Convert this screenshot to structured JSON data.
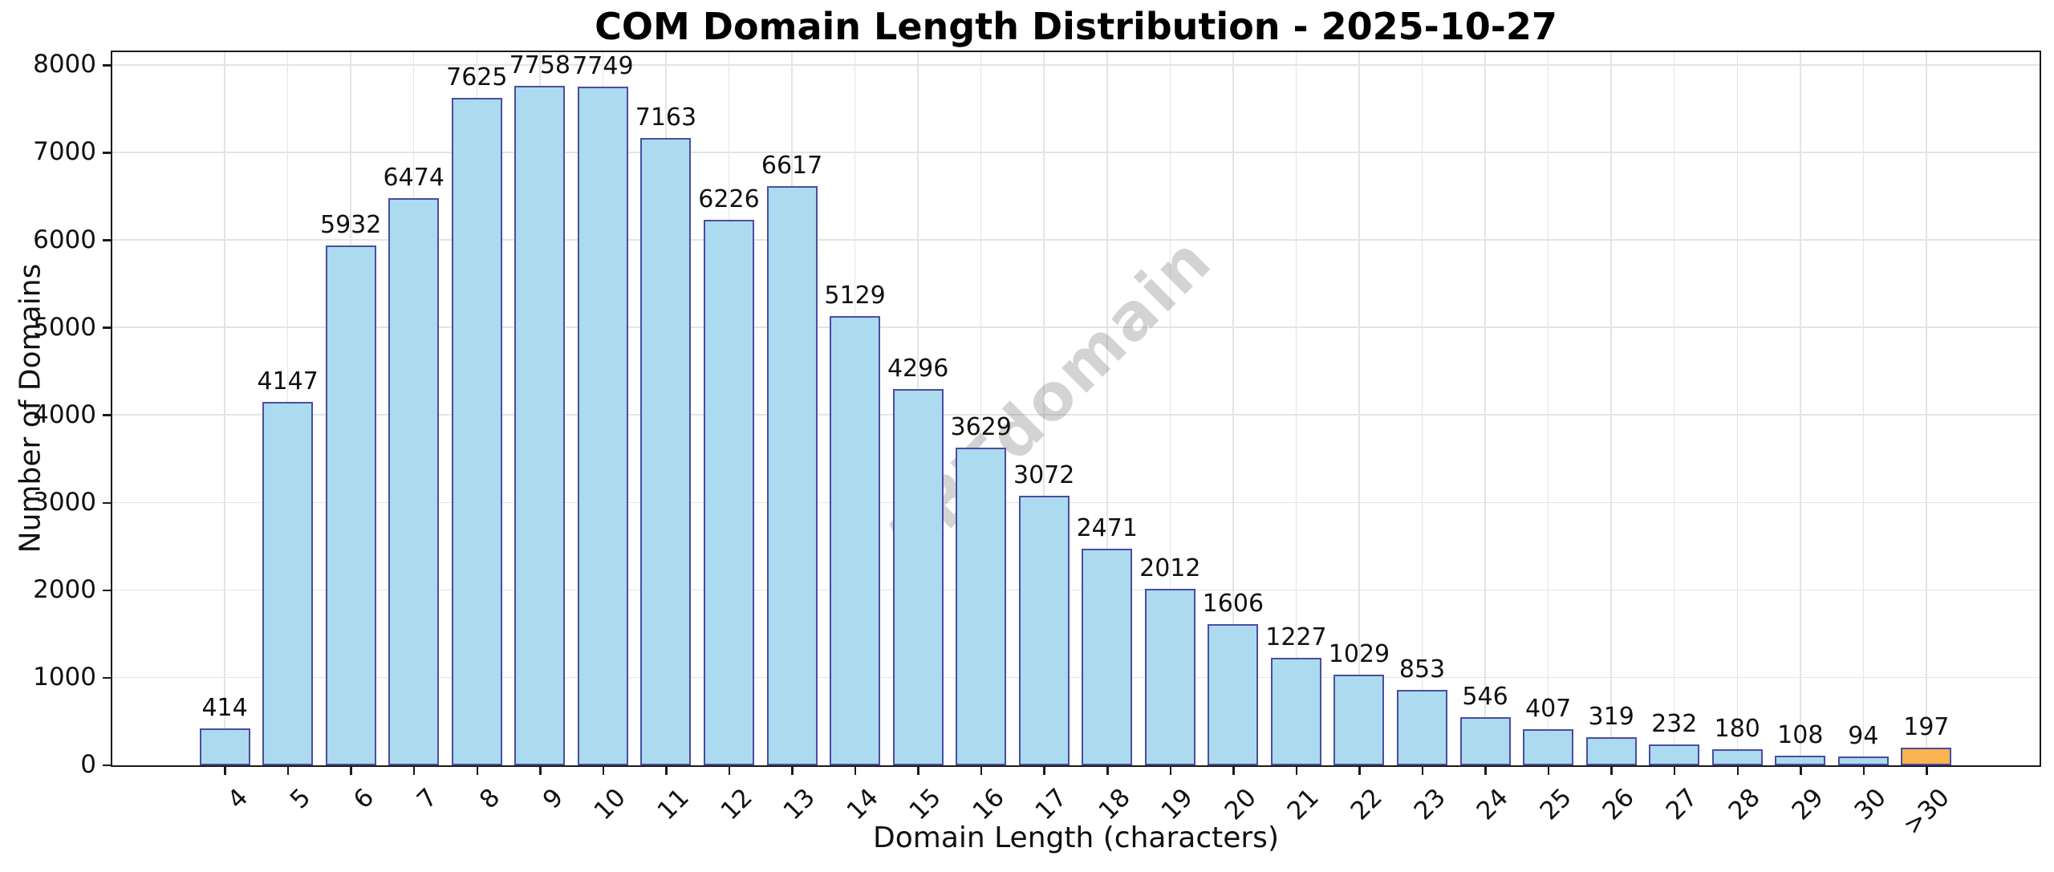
{
  "chart_data": {
    "type": "bar",
    "title": "COM Domain Length Distribution - 2025-10-27",
    "xlabel": "Domain Length (characters)",
    "ylabel": "Number of Domains",
    "watermark": "ABTdomain",
    "categories": [
      "4",
      "5",
      "6",
      "7",
      "8",
      "9",
      "10",
      "11",
      "12",
      "13",
      "14",
      "15",
      "16",
      "17",
      "18",
      "19",
      "20",
      "21",
      "22",
      "23",
      "24",
      "25",
      "26",
      "27",
      "28",
      "29",
      "30",
      ">30"
    ],
    "values": [
      414,
      4147,
      5932,
      6474,
      7625,
      7758,
      7749,
      7163,
      6226,
      6617,
      5129,
      4296,
      3629,
      3072,
      2471,
      2012,
      1606,
      1227,
      1029,
      853,
      546,
      407,
      319,
      232,
      180,
      108,
      94,
      197
    ],
    "value_labels_shown": true,
    "ylim": [
      0,
      8150
    ],
    "yticks": [
      0,
      1000,
      2000,
      3000,
      4000,
      5000,
      6000,
      7000,
      8000
    ],
    "grid": "both",
    "legend_position": "none",
    "colors": {
      "bar_fill": "#ACDAEE",
      "bar_edge": "#4A4DA3",
      "highlight_fill": "#FBB450",
      "gridline": "#e4e4e4",
      "spine": "#1a1a1a",
      "text": "#111111",
      "watermark": "rgba(110,110,110,0.30)"
    },
    "highlight_bar_index": 27
  }
}
